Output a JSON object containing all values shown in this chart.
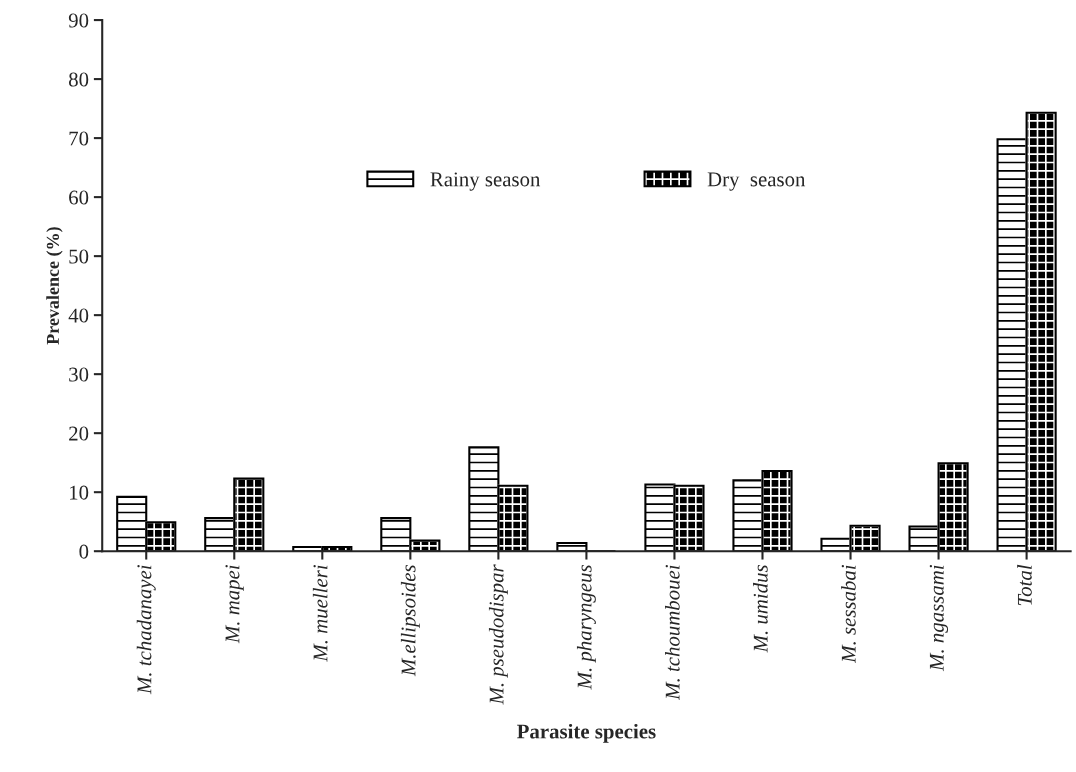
{
  "chart_data": {
    "type": "bar",
    "xlabel": "Parasite species",
    "ylabel": "Prevalence (%)",
    "categories": [
      "M. tchadanayei",
      "M. mapei",
      "M. muelleri",
      "M.ellipsoides",
      "M. pseudodispar",
      "M. pharyngeus",
      "M. tchoumbouei",
      "M. umidus",
      "M. sessabai",
      "M. ngassami",
      "Total"
    ],
    "series": [
      {
        "name": "Rainy season",
        "color": "#000000",
        "values": [
          9.2,
          5.6,
          0.7,
          5.6,
          17.6,
          1.4,
          11.3,
          12.0,
          2.1,
          4.2,
          69.8
        ]
      },
      {
        "name": "Dry  season",
        "color": "#000000",
        "values": [
          4.9,
          12.3,
          0.7,
          1.8,
          11.1,
          0,
          11.1,
          13.6,
          4.3,
          14.9,
          74.3
        ]
      }
    ],
    "ylim": [
      0,
      90
    ],
    "yticks": [
      0,
      10,
      20,
      30,
      40,
      50,
      60,
      70,
      80,
      90
    ],
    "grid": false,
    "legend": "top"
  }
}
